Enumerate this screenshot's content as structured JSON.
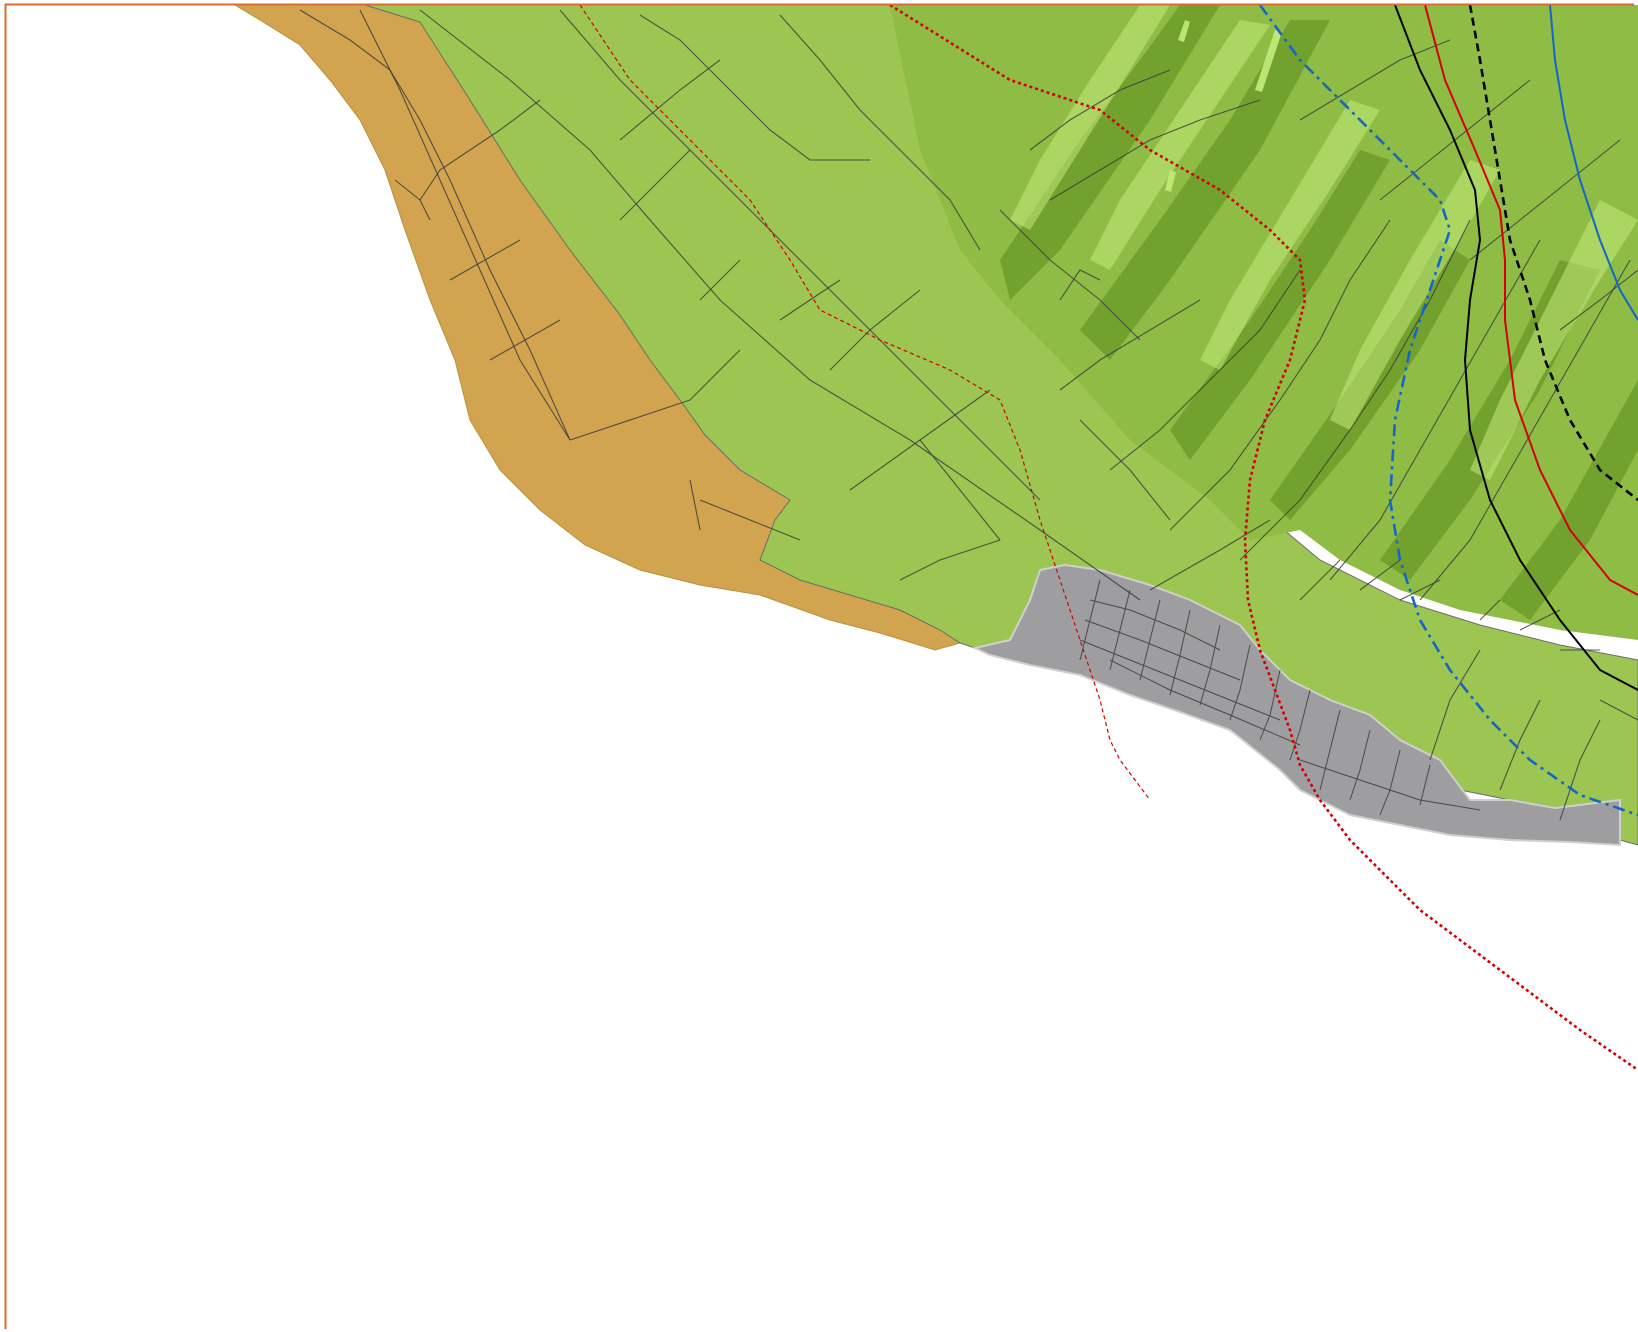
{
  "map": {
    "colors": {
      "frame": "#e0692e",
      "sea": "#ffffff",
      "agricultural_zone": "#d2a44f",
      "lowland_zone": "#9cc552",
      "urban_zone": "#9e9ea0",
      "hills_base": "#8fbc45",
      "hills_shadow": "#5b8a1c",
      "hills_highlight": "#c4eb7a",
      "roads": "#3d3d3d",
      "fault_line": "#d40000",
      "contour_red": "#d40000",
      "contour_black": "#000000",
      "contour_blue": "#1466c8"
    },
    "layers": [
      {
        "id": "agricultural-zone",
        "fill": "#d2a44f"
      },
      {
        "id": "lowland-zone",
        "fill": "#9cc552"
      },
      {
        "id": "hill-zone",
        "fill": "#8fbc45"
      },
      {
        "id": "urban-zone",
        "fill": "#9e9ea0"
      }
    ],
    "line_styles": [
      {
        "id": "boundary-red-dotted",
        "color": "#d40000",
        "style": "dotted"
      },
      {
        "id": "fault-red-dashed",
        "color": "#d40000",
        "style": "dashed"
      },
      {
        "id": "line-blue-dash-dot",
        "color": "#1466c8",
        "style": "dash-dot"
      },
      {
        "id": "line-black-dashed",
        "color": "#000000",
        "style": "dashed"
      },
      {
        "id": "line-black-solid",
        "color": "#000000",
        "style": "solid"
      },
      {
        "id": "line-red-solid",
        "color": "#d40000",
        "style": "solid"
      },
      {
        "id": "line-blue-solid",
        "color": "#1466c8",
        "style": "solid"
      }
    ]
  }
}
